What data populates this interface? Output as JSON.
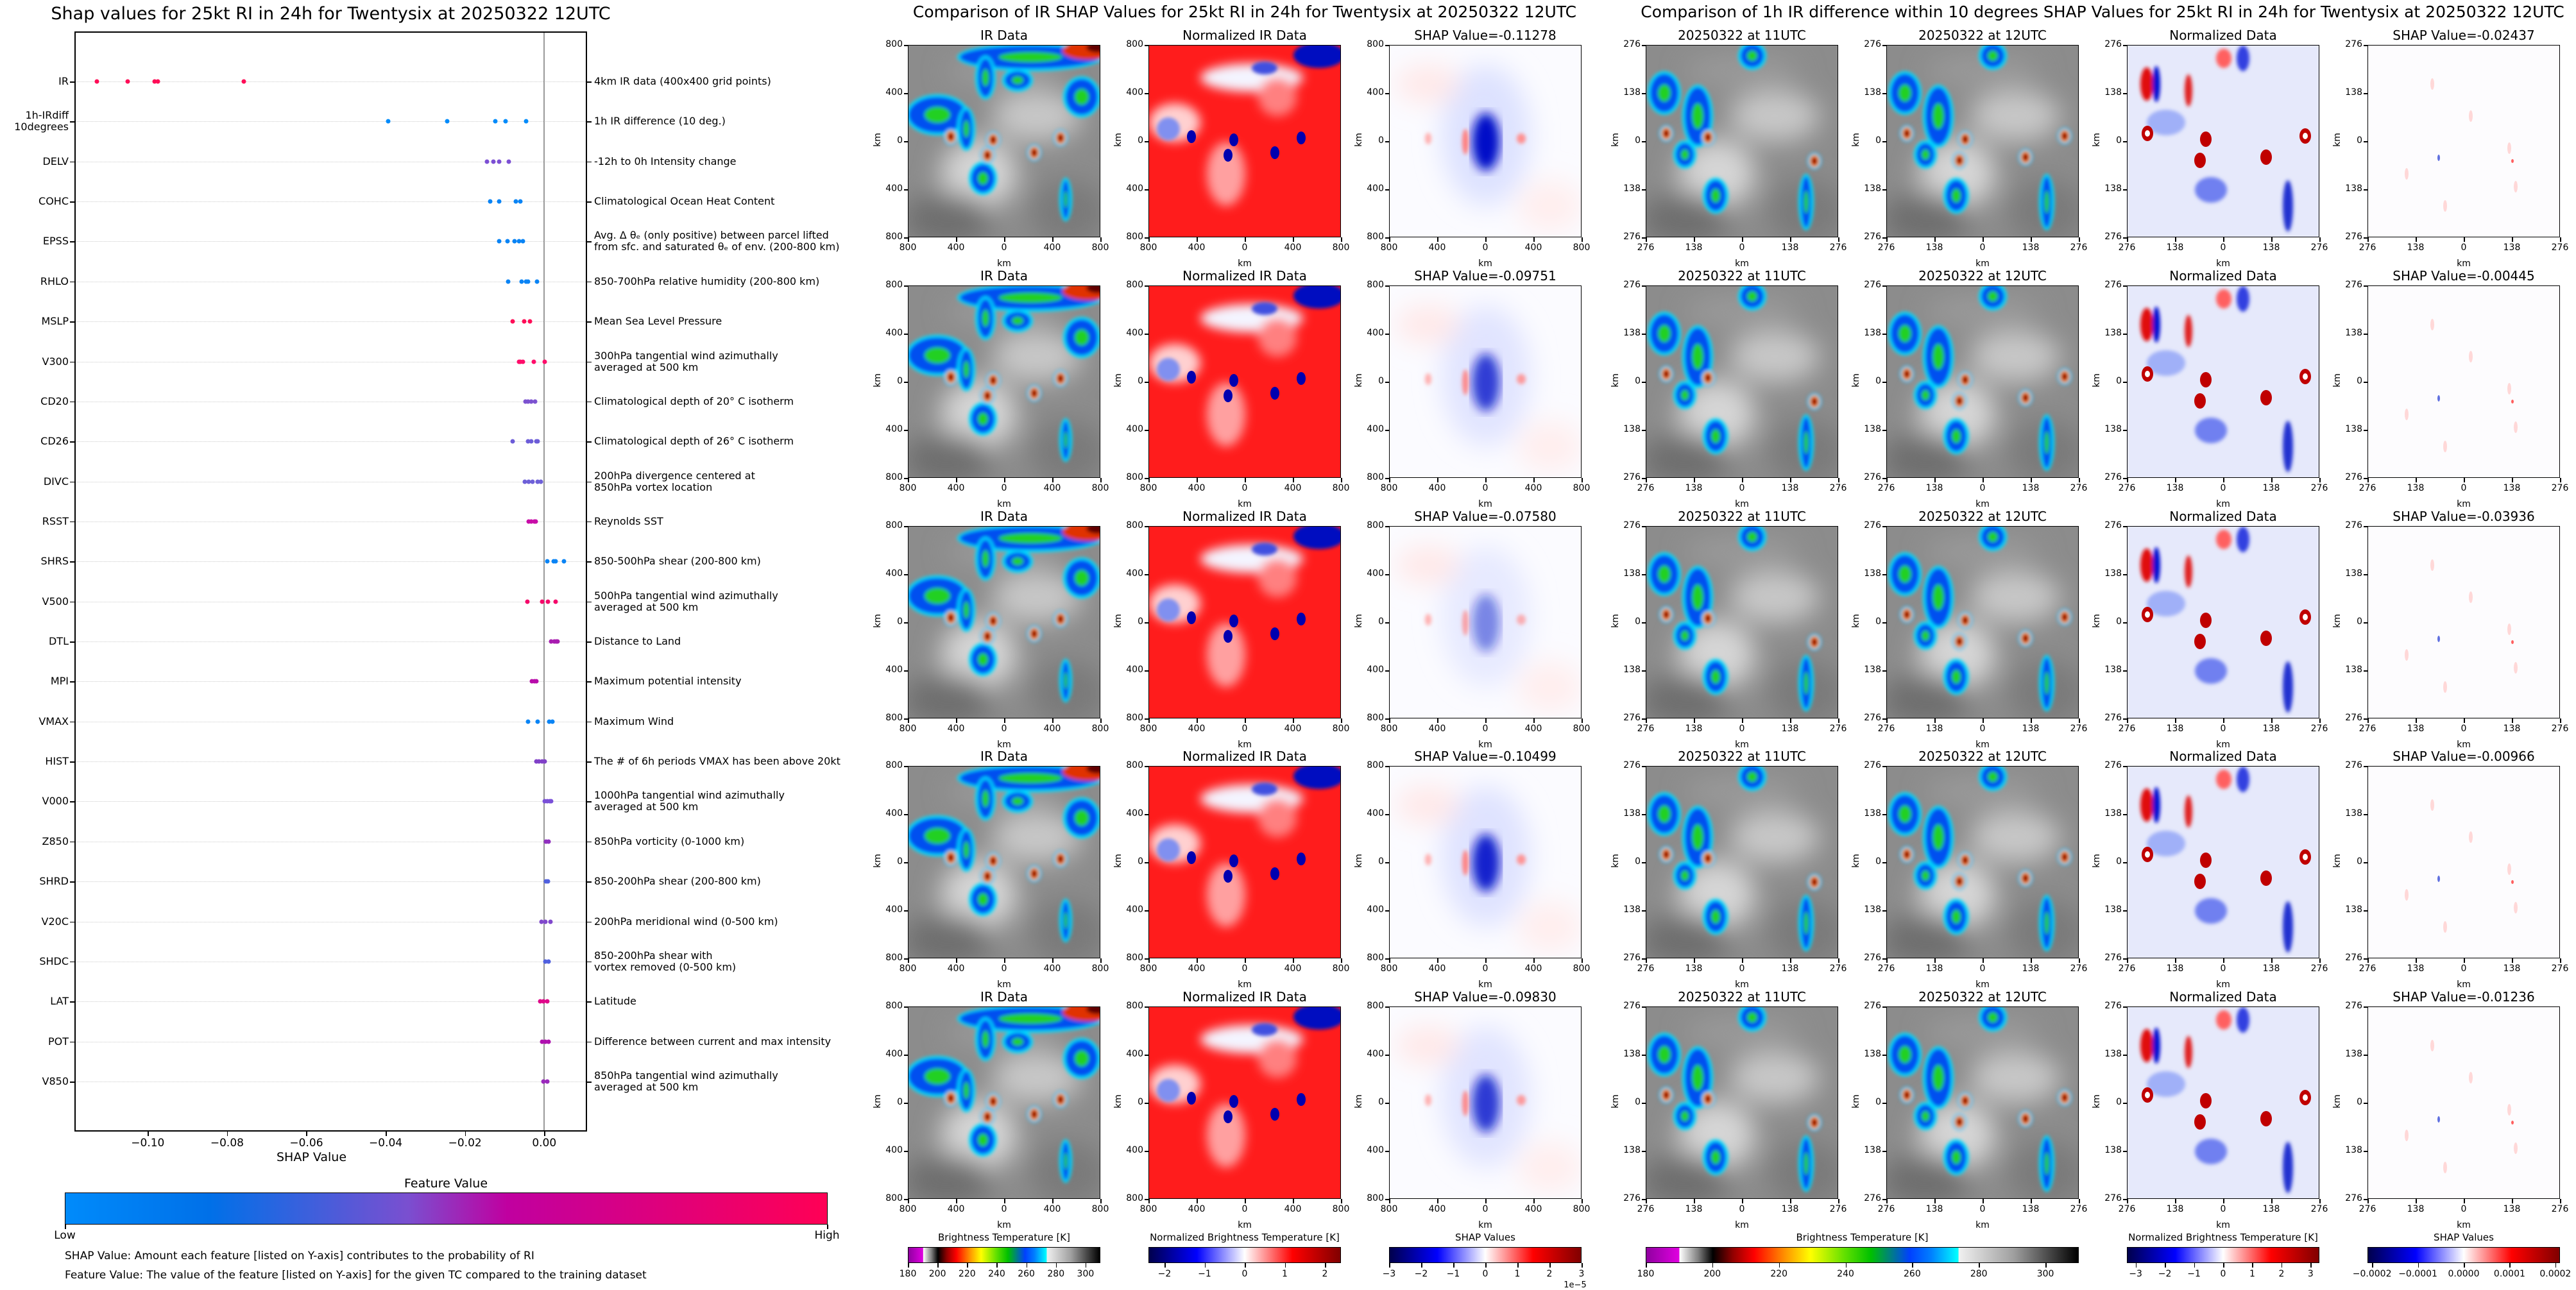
{
  "chart_data": {
    "type": "scatter",
    "title": "Shap values for 25kt RI in 24h for Twentysix at 20250322 12UTC",
    "xlabel": "SHAP Value",
    "ylabel": "",
    "xlim": [
      -0.1185,
      0.0108
    ],
    "xticks": [
      -0.1,
      -0.08,
      -0.06,
      -0.04,
      -0.02,
      0.0
    ],
    "xtick_labels": [
      "−0.10",
      "−0.08",
      "−0.06",
      "−0.04",
      "−0.02",
      "0.00"
    ],
    "grid": "horizontal dotted",
    "features": [
      {
        "code": "IR",
        "description": "4km IR data (400x400 grid points)",
        "color": "#ff0d57",
        "values": [
          -0.1128,
          -0.105,
          -0.0983,
          -0.0975,
          -0.0758
        ]
      },
      {
        "code": "1h-IRdiff\n10degrees",
        "description": "1h IR difference (10 deg.)",
        "color": "#008bfb",
        "values": [
          -0.0394,
          -0.0244,
          -0.0124,
          -0.0097,
          -0.0045
        ]
      },
      {
        "code": "DELV",
        "description": "-12h to 0h Intensity change",
        "color": "#7c4fd4",
        "values": [
          -0.0144,
          -0.0129,
          -0.0113,
          -0.0089
        ]
      },
      {
        "code": "COHC",
        "description": "Climatological Ocean Heat Content",
        "color": "#0a84f5",
        "values": [
          -0.0137,
          -0.0113,
          -0.0071,
          -0.0061
        ]
      },
      {
        "code": "EPSS",
        "description": "Avg. Δ θₑ (only positive) between parcel lifted\nfrom sfc. and saturated θₑ of env. (200-800 km)",
        "color": "#0a84f5",
        "values": [
          -0.0114,
          -0.0093,
          -0.0075,
          -0.0063,
          -0.0054
        ]
      },
      {
        "code": "RHLO",
        "description": "850-700hPa relative humidity (200-800 km)",
        "color": "#0a84f5",
        "values": [
          -0.0091,
          -0.0057,
          -0.0046,
          -0.0041,
          -0.0018
        ]
      },
      {
        "code": "MSLP",
        "description": "Mean Sea Level Pressure",
        "color": "#ff0d57",
        "values": [
          -0.0079,
          -0.005,
          -0.0036
        ]
      },
      {
        "code": "V300",
        "description": "300hPa tangential wind azimuthally\naveraged at 500 km",
        "color": "#ff0d6a",
        "values": [
          -0.0063,
          -0.006,
          -0.0054,
          -0.0027,
          0.0002
        ]
      },
      {
        "code": "CD20",
        "description": "Climatological depth of 20° C isotherm",
        "color": "#7c52d0",
        "values": [
          -0.0048,
          -0.0041,
          -0.0033,
          -0.0023
        ]
      },
      {
        "code": "CD26",
        "description": "Climatological depth of 26° C isotherm",
        "color": "#6c5cd8",
        "values": [
          -0.008,
          -0.0041,
          -0.0032,
          -0.002,
          -0.0016
        ]
      },
      {
        "code": "DIVC",
        "description": "200hPa divergence centered at\n850hPa vortex location",
        "color": "#6e60d8",
        "values": [
          -0.0049,
          -0.0039,
          -0.0029,
          -0.0016,
          -0.0008
        ]
      },
      {
        "code": "RSST",
        "description": "Reynolds SST",
        "color": "#c80ca8",
        "values": [
          -0.0039,
          -0.0032,
          -0.0025,
          -0.0021
        ]
      },
      {
        "code": "SHRS",
        "description": "850-500hPa shear (200-800 km)",
        "color": "#0a84f5",
        "values": [
          0.0007,
          0.0024,
          0.0028,
          0.005
        ]
      },
      {
        "code": "V500",
        "description": "500hPa tangential wind azimuthally\naveraged at 500 km",
        "color": "#f5086a",
        "values": [
          -0.0042,
          -0.0005,
          0.0009,
          0.0029
        ]
      },
      {
        "code": "DTL",
        "description": "Distance to Land",
        "color": "#a81cb0",
        "values": [
          0.0018,
          0.0025,
          0.003,
          0.0034
        ]
      },
      {
        "code": "MPI",
        "description": "Maximum potential intensity",
        "color": "#b80caa",
        "values": [
          -0.0031,
          -0.0024,
          -0.002
        ]
      },
      {
        "code": "VMAX",
        "description": "Maximum Wind",
        "color": "#0a84f5",
        "values": [
          -0.0041,
          -0.0016,
          0.0012,
          0.002
        ]
      },
      {
        "code": "HIST",
        "description": "The # of 6h periods VMAX has been above 20kt",
        "color": "#8040c8",
        "values": [
          -0.002,
          -0.0013,
          -0.0006,
          0.0002
        ]
      },
      {
        "code": "V000",
        "description": "1000hPa tangential wind azimuthally\naveraged at 500 km",
        "color": "#7a50d8",
        "values": [
          0.0001,
          0.0008,
          0.0014,
          0.0018
        ]
      },
      {
        "code": "Z850",
        "description": "850hPa vorticity (0-1000 km)",
        "color": "#9030c0",
        "values": [
          0.0005,
          0.0011
        ]
      },
      {
        "code": "SHRD",
        "description": "850-200hPa shear (200-800 km)",
        "color": "#5060e0",
        "values": [
          0.0004,
          0.001
        ]
      },
      {
        "code": "V20C",
        "description": "200hPa meridional wind (0-500 km)",
        "color": "#8048cc",
        "values": [
          -0.0007,
          0.0003,
          0.0016
        ]
      },
      {
        "code": "SHDC",
        "description": "850-200hPa shear with\nvortex removed (0-500 km)",
        "color": "#5060e0",
        "values": [
          0.0003,
          0.0011
        ]
      },
      {
        "code": "LAT",
        "description": "Latitude",
        "color": "#e0088a",
        "values": [
          -0.001,
          -0.0002,
          0.0007
        ]
      },
      {
        "code": "POT",
        "description": "Difference between current and max intensity",
        "color": "#b010b0",
        "values": [
          -0.0006,
          0.0003,
          0.0011
        ]
      },
      {
        "code": "V850",
        "description": "850hPa tangential wind azimuthally\naveraged at 500 km",
        "color": "#9a28bc",
        "values": [
          -0.0002,
          0.0008
        ]
      }
    ]
  },
  "feature_colorbar": {
    "title": "Feature Value",
    "low": "Low",
    "high": "High",
    "colors": [
      "#008bfb",
      "#0070e8",
      "#7a4fd0",
      "#c000a0",
      "#ff0055"
    ]
  },
  "notes": [
    "SHAP Value: Amount each feature [listed on Y-axis] contributes to the probability of RI",
    "Feature Value: The value of the feature [listed on Y-axis] for the given TC compared to the training dataset"
  ],
  "ir_comparison": {
    "title": "Comparison of IR SHAP Values for 25kt RI in 24h for Twentysix at 20250322 12UTC",
    "column_titles": [
      "IR Data",
      "Normalized IR Data"
    ],
    "shap_titles": [
      "SHAP Value=-0.11278",
      "SHAP Value=-0.09751",
      "SHAP Value=-0.07580",
      "SHAP Value=-0.10499",
      "SHAP Value=-0.09830"
    ],
    "shap_values": [
      -0.11278,
      -0.09751,
      -0.0758,
      -0.10499,
      -0.0983
    ],
    "ticks": [
      "800",
      "400",
      "0",
      "400",
      "800"
    ],
    "axis_label": "km",
    "colorbars": [
      {
        "title": "Brightness Temperature [K]",
        "range": [
          180,
          310
        ],
        "ticks": [
          180,
          200,
          220,
          240,
          260,
          280,
          300
        ],
        "labels": [
          "180",
          "200",
          "220",
          "240",
          "260",
          "280",
          "300"
        ]
      },
      {
        "title": "Normalized Brightness Temperature [K]",
        "range": [
          -2.4,
          2.4
        ],
        "ticks": [
          -2,
          -1,
          0,
          1,
          2
        ],
        "labels": [
          "−2",
          "−1",
          "0",
          "1",
          "2"
        ]
      },
      {
        "title": "SHAP Values",
        "range": [
          -3,
          3
        ],
        "ticks": [
          -3,
          -2,
          -1,
          0,
          1,
          2,
          3
        ],
        "labels": [
          "−3",
          "−2",
          "−1",
          "0",
          "1",
          "2",
          "3"
        ],
        "offset": "1e−5"
      }
    ]
  },
  "irdiff_comparison": {
    "title": "Comparison of 1h IR difference within 10 degrees SHAP Values for 25kt RI in 24h for Twentysix at 20250322 12UTC",
    "column_titles": [
      "20250322 at 11UTC",
      "20250322 at 12UTC",
      "Normalized Data"
    ],
    "shap_titles": [
      "SHAP Value=-0.02437",
      "SHAP Value=-0.00445",
      "SHAP Value=-0.03936",
      "SHAP Value=-0.00966",
      "SHAP Value=-0.01236"
    ],
    "shap_values": [
      -0.02437,
      -0.00445,
      -0.03936,
      -0.00966,
      -0.01236
    ],
    "ticks": [
      "276",
      "138",
      "0",
      "138",
      "276"
    ],
    "axis_label": "km",
    "colorbars": [
      {
        "title": "Brightness Temperature [K]",
        "range": [
          180,
          310
        ],
        "ticks": [
          180,
          200,
          220,
          240,
          260,
          280,
          300
        ],
        "labels": [
          "180",
          "200",
          "220",
          "240",
          "260",
          "280",
          "300"
        ]
      },
      {
        "title": "Normalized Brightness Temperature [K]",
        "range": [
          -3.3,
          3.3
        ],
        "ticks": [
          -3,
          -2,
          -1,
          0,
          1,
          2,
          3
        ],
        "labels": [
          "−3",
          "−2",
          "−1",
          "0",
          "1",
          "2",
          "3"
        ]
      },
      {
        "title": "SHAP Values",
        "range": [
          -0.00021,
          0.00021
        ],
        "ticks": [
          -0.0002,
          -0.0001,
          0,
          0.0001,
          0.0002
        ],
        "labels": [
          "−0.0002",
          "−0.0001",
          "0.0000",
          "0.0001",
          "0.0002"
        ]
      }
    ]
  }
}
